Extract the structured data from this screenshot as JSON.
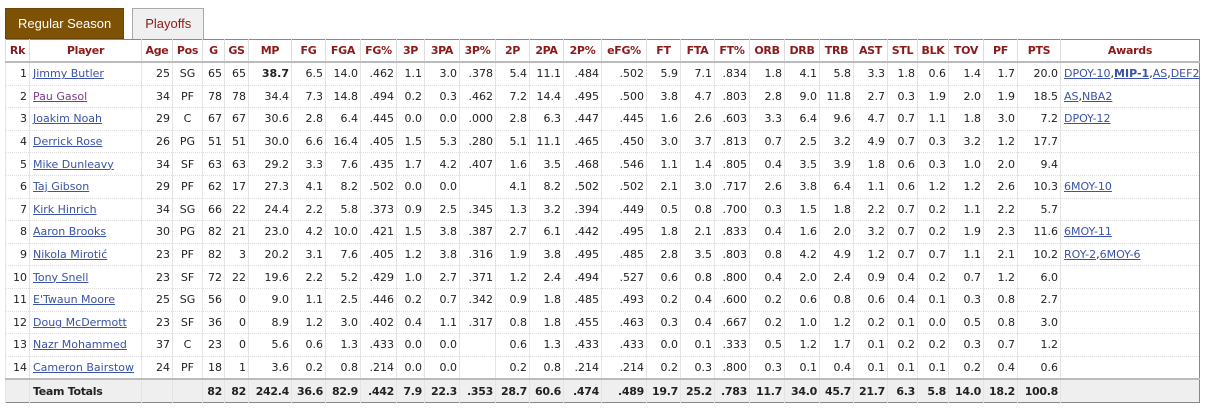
{
  "tabs": [
    {
      "label": "Regular Season",
      "active": true
    },
    {
      "label": "Playoffs",
      "active": false
    }
  ],
  "columns": [
    "Rk",
    "Player",
    "Age",
    "Pos",
    "G",
    "GS",
    "MP",
    "FG",
    "FGA",
    "FG%",
    "3P",
    "3PA",
    "3P%",
    "2P",
    "2PA",
    "2P%",
    "eFG%",
    "FT",
    "FTA",
    "FT%",
    "ORB",
    "DRB",
    "TRB",
    "AST",
    "STL",
    "BLK",
    "TOV",
    "PF",
    "PTS",
    "Awards"
  ],
  "rows": [
    {
      "cells": [
        "1",
        "Jimmy Butler",
        "25",
        "SG",
        "65",
        "65",
        "38.7",
        "6.5",
        "14.0",
        ".462",
        "1.1",
        "3.0",
        ".378",
        "5.4",
        "11.1",
        ".484",
        ".502",
        "5.9",
        "7.1",
        ".834",
        "1.8",
        "4.1",
        "5.8",
        "3.3",
        "1.8",
        "0.6",
        "1.4",
        "1.7",
        "20.0"
      ],
      "awards": [
        {
          "text": "DPOY-10",
          "bold": false
        },
        {
          "text": "MIP-1",
          "bold": true
        },
        {
          "text": "AS",
          "bold": false
        },
        {
          "text": "DEF2",
          "bold": false
        }
      ],
      "visited": false
    },
    {
      "cells": [
        "2",
        "Pau Gasol",
        "34",
        "PF",
        "78",
        "78",
        "34.4",
        "7.3",
        "14.8",
        ".494",
        "0.2",
        "0.3",
        ".462",
        "7.2",
        "14.4",
        ".495",
        ".500",
        "3.8",
        "4.7",
        ".803",
        "2.8",
        "9.0",
        "11.8",
        "2.7",
        "0.3",
        "1.9",
        "2.0",
        "1.9",
        "18.5"
      ],
      "awards": [
        {
          "text": "AS",
          "bold": false
        },
        {
          "text": "NBA2",
          "bold": false
        }
      ],
      "visited": true
    },
    {
      "cells": [
        "3",
        "Joakim Noah",
        "29",
        "C",
        "67",
        "67",
        "30.6",
        "2.8",
        "6.4",
        ".445",
        "0.0",
        "0.0",
        ".000",
        "2.8",
        "6.3",
        ".447",
        ".445",
        "1.6",
        "2.6",
        ".603",
        "3.3",
        "6.4",
        "9.6",
        "4.7",
        "0.7",
        "1.1",
        "1.8",
        "3.0",
        "7.2"
      ],
      "awards": [
        {
          "text": "DPOY-12",
          "bold": false
        }
      ],
      "visited": false
    },
    {
      "cells": [
        "4",
        "Derrick Rose",
        "26",
        "PG",
        "51",
        "51",
        "30.0",
        "6.6",
        "16.4",
        ".405",
        "1.5",
        "5.3",
        ".280",
        "5.1",
        "11.1",
        ".465",
        ".450",
        "3.0",
        "3.7",
        ".813",
        "0.7",
        "2.5",
        "3.2",
        "4.9",
        "0.7",
        "0.3",
        "3.2",
        "1.2",
        "17.7"
      ],
      "awards": [],
      "visited": false
    },
    {
      "cells": [
        "5",
        "Mike Dunleavy",
        "34",
        "SF",
        "63",
        "63",
        "29.2",
        "3.3",
        "7.6",
        ".435",
        "1.7",
        "4.2",
        ".407",
        "1.6",
        "3.5",
        ".468",
        ".546",
        "1.1",
        "1.4",
        ".805",
        "0.4",
        "3.5",
        "3.9",
        "1.8",
        "0.6",
        "0.3",
        "1.0",
        "2.0",
        "9.4"
      ],
      "awards": [],
      "visited": false
    },
    {
      "cells": [
        "6",
        "Taj Gibson",
        "29",
        "PF",
        "62",
        "17",
        "27.3",
        "4.1",
        "8.2",
        ".502",
        "0.0",
        "0.0",
        "",
        "4.1",
        "8.2",
        ".502",
        ".502",
        "2.1",
        "3.0",
        ".717",
        "2.6",
        "3.8",
        "6.4",
        "1.1",
        "0.6",
        "1.2",
        "1.2",
        "2.6",
        "10.3"
      ],
      "awards": [
        {
          "text": "6MOY-10",
          "bold": false
        }
      ],
      "visited": false
    },
    {
      "cells": [
        "7",
        "Kirk Hinrich",
        "34",
        "SG",
        "66",
        "22",
        "24.4",
        "2.2",
        "5.8",
        ".373",
        "0.9",
        "2.5",
        ".345",
        "1.3",
        "3.2",
        ".394",
        ".449",
        "0.5",
        "0.8",
        ".700",
        "0.3",
        "1.5",
        "1.8",
        "2.2",
        "0.7",
        "0.2",
        "1.1",
        "2.2",
        "5.7"
      ],
      "awards": [],
      "visited": false
    },
    {
      "cells": [
        "8",
        "Aaron Brooks",
        "30",
        "PG",
        "82",
        "21",
        "23.0",
        "4.2",
        "10.0",
        ".421",
        "1.5",
        "3.8",
        ".387",
        "2.7",
        "6.1",
        ".442",
        ".495",
        "1.8",
        "2.1",
        ".833",
        "0.4",
        "1.6",
        "2.0",
        "3.2",
        "0.7",
        "0.2",
        "1.9",
        "2.3",
        "11.6"
      ],
      "awards": [
        {
          "text": "6MOY-11",
          "bold": false
        }
      ],
      "visited": false
    },
    {
      "cells": [
        "9",
        "Nikola Mirotić",
        "23",
        "PF",
        "82",
        "3",
        "20.2",
        "3.1",
        "7.6",
        ".405",
        "1.2",
        "3.8",
        ".316",
        "1.9",
        "3.8",
        ".495",
        ".485",
        "2.8",
        "3.5",
        ".803",
        "0.8",
        "4.2",
        "4.9",
        "1.2",
        "0.7",
        "0.7",
        "1.1",
        "2.1",
        "10.2"
      ],
      "awards": [
        {
          "text": "ROY-2",
          "bold": false
        },
        {
          "text": "6MOY-6",
          "bold": false
        }
      ],
      "visited": false
    },
    {
      "cells": [
        "10",
        "Tony Snell",
        "23",
        "SF",
        "72",
        "22",
        "19.6",
        "2.2",
        "5.2",
        ".429",
        "1.0",
        "2.7",
        ".371",
        "1.2",
        "2.4",
        ".494",
        ".527",
        "0.6",
        "0.8",
        ".800",
        "0.4",
        "2.0",
        "2.4",
        "0.9",
        "0.4",
        "0.2",
        "0.7",
        "1.2",
        "6.0"
      ],
      "awards": [],
      "visited": false
    },
    {
      "cells": [
        "11",
        "E'Twaun Moore",
        "25",
        "SG",
        "56",
        "0",
        "9.0",
        "1.1",
        "2.5",
        ".446",
        "0.2",
        "0.7",
        ".342",
        "0.9",
        "1.8",
        ".485",
        ".493",
        "0.2",
        "0.4",
        ".600",
        "0.2",
        "0.6",
        "0.8",
        "0.6",
        "0.4",
        "0.1",
        "0.3",
        "0.8",
        "2.7"
      ],
      "awards": [],
      "visited": false
    },
    {
      "cells": [
        "12",
        "Doug McDermott",
        "23",
        "SF",
        "36",
        "0",
        "8.9",
        "1.2",
        "3.0",
        ".402",
        "0.4",
        "1.1",
        ".317",
        "0.8",
        "1.8",
        ".455",
        ".463",
        "0.3",
        "0.4",
        ".667",
        "0.2",
        "1.0",
        "1.2",
        "0.2",
        "0.1",
        "0.0",
        "0.5",
        "0.8",
        "3.0"
      ],
      "awards": [],
      "visited": false
    },
    {
      "cells": [
        "13",
        "Nazr Mohammed",
        "37",
        "C",
        "23",
        "0",
        "5.6",
        "0.6",
        "1.3",
        ".433",
        "0.0",
        "0.0",
        "",
        "0.6",
        "1.3",
        ".433",
        ".433",
        "0.0",
        "0.1",
        ".333",
        "0.5",
        "1.2",
        "1.7",
        "0.1",
        "0.2",
        "0.2",
        "0.3",
        "0.7",
        "1.2"
      ],
      "awards": [],
      "visited": false
    },
    {
      "cells": [
        "14",
        "Cameron Bairstow",
        "24",
        "PF",
        "18",
        "1",
        "3.6",
        "0.2",
        "0.8",
        ".214",
        "0.0",
        "0.0",
        "",
        "0.2",
        "0.8",
        ".214",
        ".214",
        "0.2",
        "0.3",
        ".800",
        "0.3",
        "0.1",
        "0.4",
        "0.1",
        "0.1",
        "0.1",
        "0.2",
        "0.4",
        "0.6"
      ],
      "awards": [],
      "visited": false
    }
  ],
  "totals": [
    "",
    "Team Totals",
    "",
    "",
    "82",
    "82",
    "242.4",
    "36.6",
    "82.9",
    ".442",
    "7.9",
    "22.3",
    ".353",
    "28.7",
    "60.6",
    ".474",
    ".489",
    "19.7",
    "25.2",
    ".783",
    "11.7",
    "34.0",
    "45.7",
    "21.7",
    "6.3",
    "5.8",
    "14.0",
    "18.2",
    "100.8",
    ""
  ],
  "colors": {
    "active_tab": "#7d5204",
    "header_text": "#8b1a1a",
    "link": "#3b53a4",
    "visited_link": "#7a3b8a"
  }
}
